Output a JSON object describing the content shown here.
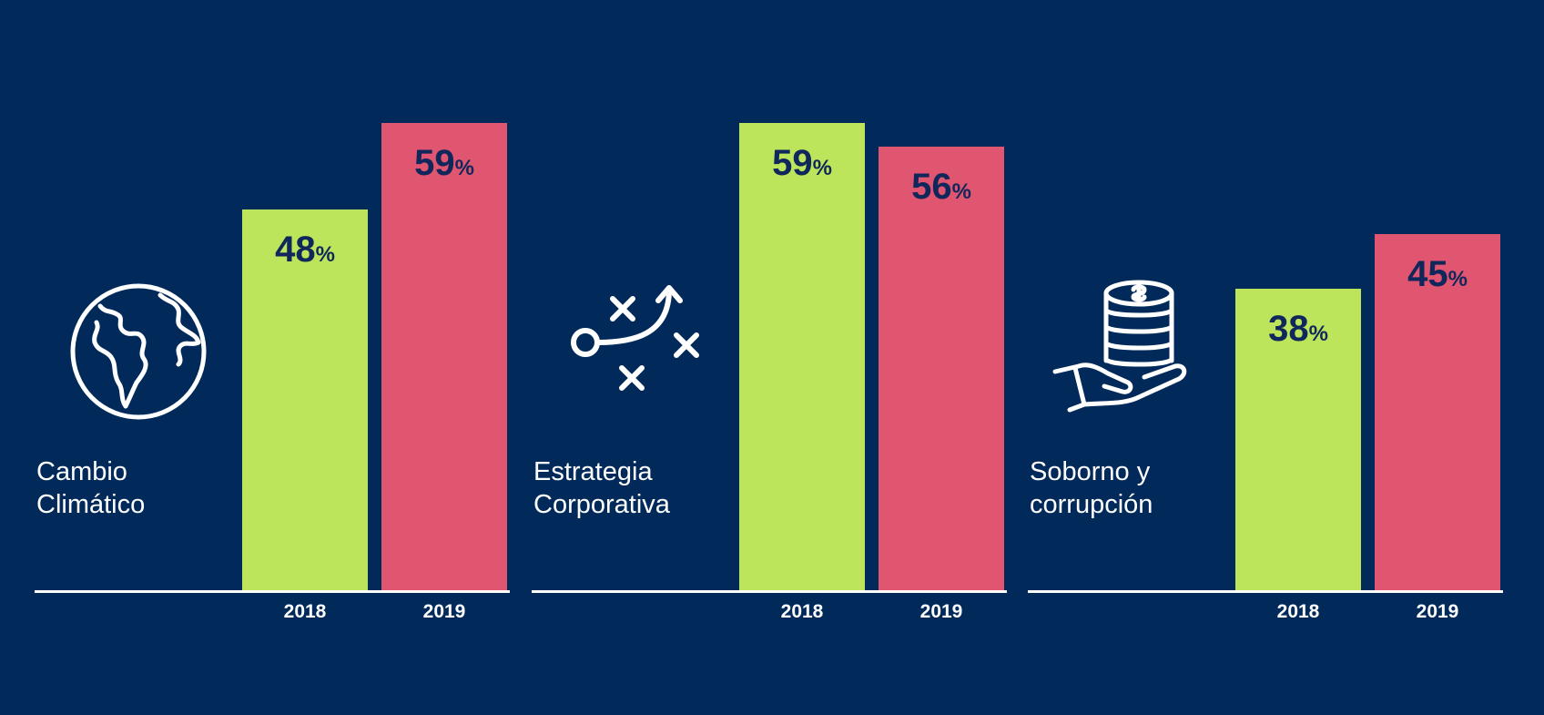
{
  "chart_data": {
    "type": "bar",
    "categories": [
      "2018",
      "2019"
    ],
    "ylim": [
      0,
      100
    ],
    "value_suffix": "%",
    "colors": {
      "background": "#012a5b",
      "y2018": "#bce55c",
      "y2019": "#e05570",
      "value_text": "#10275b"
    },
    "panels": [
      {
        "label_lines": [
          "Cambio",
          "Climático"
        ],
        "icon": "globe-icon",
        "values": [
          48,
          59
        ]
      },
      {
        "label_lines": [
          "Estrategia",
          "Corporativa"
        ],
        "icon": "strategy-play-icon",
        "values": [
          59,
          56
        ]
      },
      {
        "label_lines": [
          "Soborno y",
          "corrupción"
        ],
        "icon": "hand-coins-icon",
        "values": [
          38,
          45
        ]
      }
    ]
  }
}
